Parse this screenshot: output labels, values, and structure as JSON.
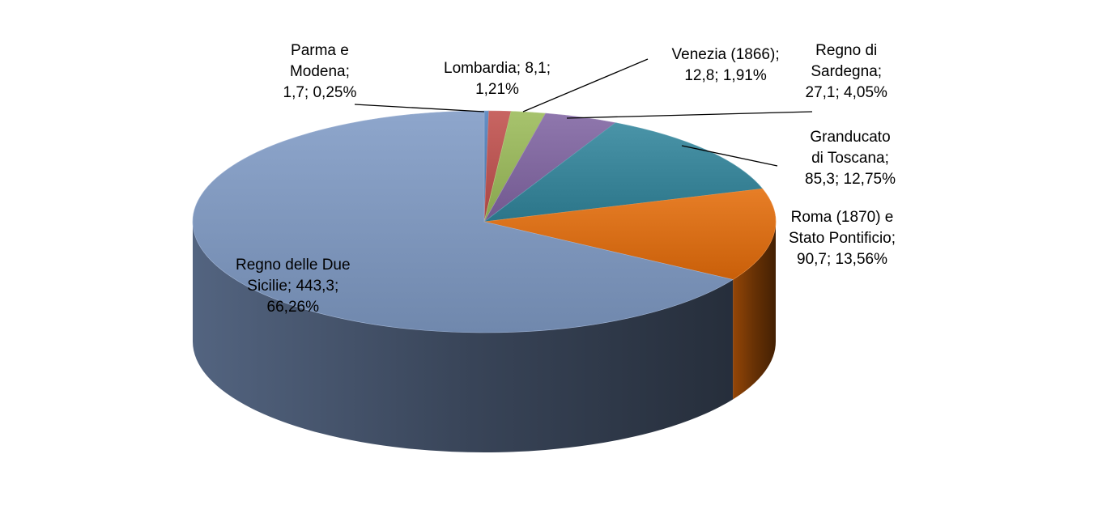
{
  "chart_data": {
    "type": "pie",
    "style": "3d",
    "title": "",
    "slices": [
      {
        "label_lines": [
          "Parma e",
          "Modena;",
          "1,7; 0,25%"
        ],
        "value": 1.7,
        "percent": 0.25,
        "color": "#4f81bd"
      },
      {
        "label_lines": [
          "Lombardia; 8,1;",
          "1,21%"
        ],
        "value": 8.1,
        "percent": 1.21,
        "color": "#c0504d"
      },
      {
        "label_lines": [
          "Venezia (1866);",
          "12,8; 1,91%"
        ],
        "value": 12.8,
        "percent": 1.91,
        "color": "#9bbb59"
      },
      {
        "label_lines": [
          "Regno di",
          "Sardegna;",
          "27,1; 4,05%"
        ],
        "value": 27.1,
        "percent": 4.05,
        "color": "#8064a2"
      },
      {
        "label_lines": [
          "Granducato",
          "di Toscana;",
          "85,3; 12,75%"
        ],
        "value": 85.3,
        "percent": 12.75,
        "color": "#31859c"
      },
      {
        "label_lines": [
          "Roma (1870) e",
          "Stato Pontificio;",
          "90,7; 13,56%"
        ],
        "value": 90.7,
        "percent": 13.56,
        "color": "#e46c0a"
      },
      {
        "label_lines": [
          "Regno delle Due",
          "Sicilie; 443,3;",
          "66,26%"
        ],
        "value": 443.3,
        "percent": 66.26,
        "color": "#7f9ac5"
      }
    ],
    "legend": "none"
  }
}
